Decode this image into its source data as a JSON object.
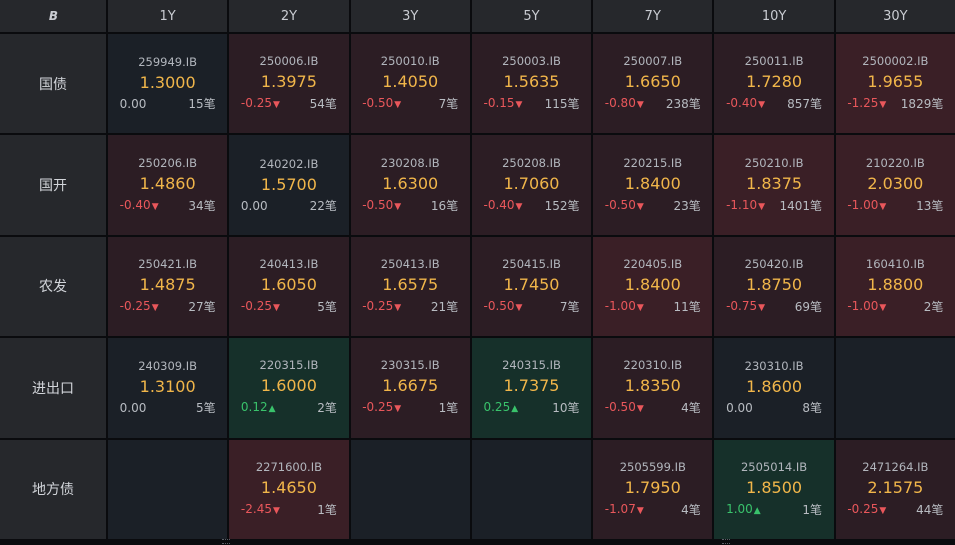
{
  "corner_logo": "B",
  "terms": [
    "1Y",
    "2Y",
    "3Y",
    "5Y",
    "7Y",
    "10Y",
    "30Y"
  ],
  "rows": [
    {
      "label": "国债",
      "cells": [
        {
          "code": "259949.IB",
          "yield": "1.3000",
          "change": "0.00",
          "arrow": "",
          "deals": "15笔",
          "trend": "neutral"
        },
        {
          "code": "250006.IB",
          "yield": "1.3975",
          "change": "-0.25",
          "arrow": "▼",
          "deals": "54笔",
          "trend": "down"
        },
        {
          "code": "250010.IB",
          "yield": "1.4050",
          "change": "-0.50",
          "arrow": "▼",
          "deals": "7笔",
          "trend": "down"
        },
        {
          "code": "250003.IB",
          "yield": "1.5635",
          "change": "-0.15",
          "arrow": "▼",
          "deals": "115笔",
          "trend": "down"
        },
        {
          "code": "250007.IB",
          "yield": "1.6650",
          "change": "-0.80",
          "arrow": "▼",
          "deals": "238笔",
          "trend": "down"
        },
        {
          "code": "250011.IB",
          "yield": "1.7280",
          "change": "-0.40",
          "arrow": "▼",
          "deals": "857笔",
          "trend": "down"
        },
        {
          "code": "2500002.IB",
          "yield": "1.9655",
          "change": "-1.25",
          "arrow": "▼",
          "deals": "1829笔",
          "trend": "down-strong"
        }
      ]
    },
    {
      "label": "国开",
      "cells": [
        {
          "code": "250206.IB",
          "yield": "1.4860",
          "change": "-0.40",
          "arrow": "▼",
          "deals": "34笔",
          "trend": "down"
        },
        {
          "code": "240202.IB",
          "yield": "1.5700",
          "change": "0.00",
          "arrow": "",
          "deals": "22笔",
          "trend": "neutral"
        },
        {
          "code": "230208.IB",
          "yield": "1.6300",
          "change": "-0.50",
          "arrow": "▼",
          "deals": "16笔",
          "trend": "down"
        },
        {
          "code": "250208.IB",
          "yield": "1.7060",
          "change": "-0.40",
          "arrow": "▼",
          "deals": "152笔",
          "trend": "down"
        },
        {
          "code": "220215.IB",
          "yield": "1.8400",
          "change": "-0.50",
          "arrow": "▼",
          "deals": "23笔",
          "trend": "down"
        },
        {
          "code": "250210.IB",
          "yield": "1.8375",
          "change": "-1.10",
          "arrow": "▼",
          "deals": "1401笔",
          "trend": "down-strong"
        },
        {
          "code": "210220.IB",
          "yield": "2.0300",
          "change": "-1.00",
          "arrow": "▼",
          "deals": "13笔",
          "trend": "down-strong"
        }
      ]
    },
    {
      "label": "农发",
      "cells": [
        {
          "code": "250421.IB",
          "yield": "1.4875",
          "change": "-0.25",
          "arrow": "▼",
          "deals": "27笔",
          "trend": "down"
        },
        {
          "code": "240413.IB",
          "yield": "1.6050",
          "change": "-0.25",
          "arrow": "▼",
          "deals": "5笔",
          "trend": "down"
        },
        {
          "code": "250413.IB",
          "yield": "1.6575",
          "change": "-0.25",
          "arrow": "▼",
          "deals": "21笔",
          "trend": "down"
        },
        {
          "code": "250415.IB",
          "yield": "1.7450",
          "change": "-0.50",
          "arrow": "▼",
          "deals": "7笔",
          "trend": "down"
        },
        {
          "code": "220405.IB",
          "yield": "1.8400",
          "change": "-1.00",
          "arrow": "▼",
          "deals": "11笔",
          "trend": "down-strong"
        },
        {
          "code": "250420.IB",
          "yield": "1.8750",
          "change": "-0.75",
          "arrow": "▼",
          "deals": "69笔",
          "trend": "down"
        },
        {
          "code": "160410.IB",
          "yield": "1.8800",
          "change": "-1.00",
          "arrow": "▼",
          "deals": "2笔",
          "trend": "down-strong"
        }
      ]
    },
    {
      "label": "进出口",
      "cells": [
        {
          "code": "240309.IB",
          "yield": "1.3100",
          "change": "0.00",
          "arrow": "",
          "deals": "5笔",
          "trend": "neutral"
        },
        {
          "code": "220315.IB",
          "yield": "1.6000",
          "change": "0.12",
          "arrow": "▲",
          "deals": "2笔",
          "trend": "up"
        },
        {
          "code": "230315.IB",
          "yield": "1.6675",
          "change": "-0.25",
          "arrow": "▼",
          "deals": "1笔",
          "trend": "down"
        },
        {
          "code": "240315.IB",
          "yield": "1.7375",
          "change": "0.25",
          "arrow": "▲",
          "deals": "10笔",
          "trend": "up"
        },
        {
          "code": "220310.IB",
          "yield": "1.8350",
          "change": "-0.50",
          "arrow": "▼",
          "deals": "4笔",
          "trend": "down"
        },
        {
          "code": "230310.IB",
          "yield": "1.8600",
          "change": "0.00",
          "arrow": "",
          "deals": "8笔",
          "trend": "neutral"
        },
        null
      ]
    },
    {
      "label": "地方债",
      "cells": [
        null,
        {
          "code": "2271600.IB",
          "yield": "1.4650",
          "change": "-2.45",
          "arrow": "▼",
          "deals": "1笔",
          "trend": "down-strong"
        },
        null,
        null,
        {
          "code": "2505599.IB",
          "yield": "1.7950",
          "change": "-1.07",
          "arrow": "▼",
          "deals": "4笔",
          "trend": "down"
        },
        {
          "code": "2505014.IB",
          "yield": "1.8500",
          "change": "1.00",
          "arrow": "▲",
          "deals": "1笔",
          "trend": "up"
        },
        {
          "code": "2471264.IB",
          "yield": "2.1575",
          "change": "-0.25",
          "arrow": "▼",
          "deals": "44笔",
          "trend": "down"
        }
      ]
    }
  ],
  "colors": {
    "background": "#0e1014",
    "header_bg": "#26282c",
    "cell_neutral": "#1b2027",
    "cell_down": "#2c1d24",
    "cell_down_strong": "#3a1f26",
    "cell_up": "#16302a",
    "yield_text": "#f1b64a",
    "negative": "#e9575b",
    "positive": "#39c26b"
  }
}
